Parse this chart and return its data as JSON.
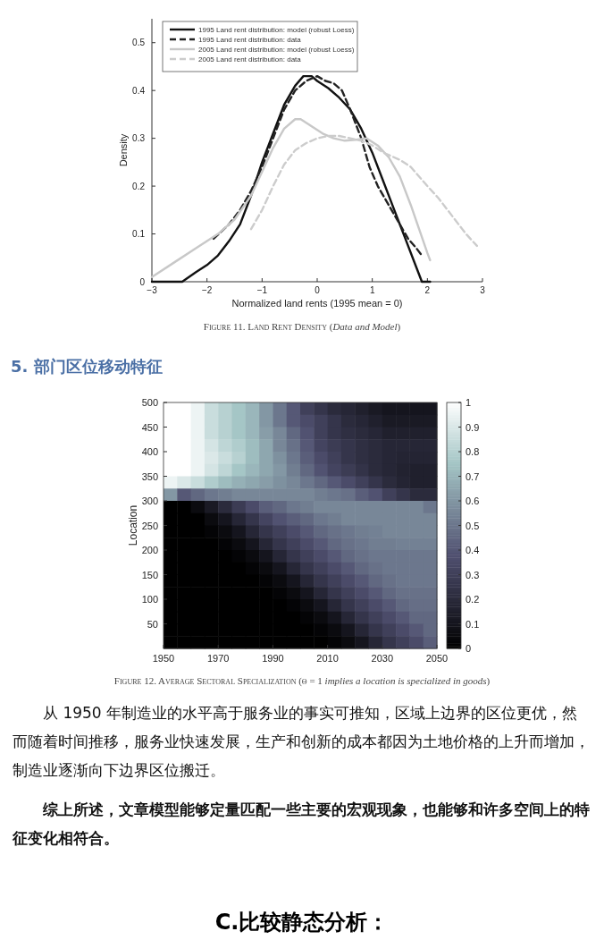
{
  "chart_data": [
    {
      "type": "line",
      "xlabel": "Normalized land rents (1995 mean = 0)",
      "ylabel": "Density",
      "xlim": [
        -3,
        3
      ],
      "xticks": [
        {
          "value": -3,
          "label": "−3"
        },
        {
          "value": -2,
          "label": "−2"
        },
        {
          "value": -1,
          "label": "−1"
        },
        0,
        1,
        2,
        3
      ],
      "ylim": [
        0,
        0.55
      ],
      "yticks": [
        0,
        0.1,
        0.2,
        0.3,
        0.4,
        0.5
      ],
      "grid": false,
      "legend": "top left",
      "annotations": [
        "Figure 11. Land Rent Density (*Data and Model*)"
      ],
      "series": [
        {
          "name": "1995 Land rent distribution: model (robust Loess)",
          "color": "#111111",
          "line_style": "solid",
          "x": [
            -3,
            -2.45,
            -2.2,
            -2,
            -1.8,
            -1.6,
            -1.4,
            -1.2,
            -1,
            -0.8,
            -0.6,
            -0.4,
            -0.25,
            -0.1,
            0,
            0.2,
            0.4,
            0.6,
            0.8,
            1.0,
            1.2,
            1.4,
            1.6,
            1.75,
            1.9,
            2.05
          ],
          "values": [
            0,
            0,
            0.02,
            0.035,
            0.055,
            0.085,
            0.12,
            0.18,
            0.25,
            0.31,
            0.37,
            0.41,
            0.43,
            0.43,
            0.42,
            0.405,
            0.385,
            0.36,
            0.32,
            0.27,
            0.21,
            0.15,
            0.09,
            0.045,
            0,
            0
          ]
        },
        {
          "name": "1995 Land rent distribution: data",
          "color": "#222222",
          "line_style": "dashed",
          "x": [
            -1.88,
            -1.6,
            -1.4,
            -1.2,
            -1,
            -0.8,
            -0.6,
            -0.4,
            -0.2,
            0,
            0.15,
            0.3,
            0.45,
            0.6,
            0.8,
            0.95,
            1.1,
            1.3,
            1.5,
            1.65,
            1.8,
            1.9
          ],
          "values": [
            0.09,
            0.12,
            0.15,
            0.19,
            0.24,
            0.3,
            0.36,
            0.4,
            0.42,
            0.43,
            0.42,
            0.415,
            0.4,
            0.36,
            0.3,
            0.24,
            0.2,
            0.16,
            0.12,
            0.09,
            0.07,
            0.055
          ]
        },
        {
          "name": "2005 Land rent distribution: model (robust Loess)",
          "color": "#c8c8c8",
          "line_style": "solid",
          "x": [
            -3,
            -2.6,
            -2.2,
            -1.8,
            -1.5,
            -1.2,
            -1,
            -0.8,
            -0.6,
            -0.4,
            -0.3,
            -0.1,
            0.1,
            0.3,
            0.5,
            0.7,
            0.9,
            1.1,
            1.3,
            1.5,
            1.7,
            1.85,
            2.0,
            2.05
          ],
          "values": [
            0.01,
            0.04,
            0.07,
            0.1,
            0.13,
            0.18,
            0.23,
            0.28,
            0.32,
            0.34,
            0.34,
            0.325,
            0.31,
            0.3,
            0.295,
            0.297,
            0.3,
            0.285,
            0.26,
            0.22,
            0.16,
            0.11,
            0.06,
            0.045
          ]
        },
        {
          "name": "2005 Land rent distribution: data",
          "color": "#cccccc",
          "line_style": "dashed",
          "x": [
            -1.2,
            -1,
            -0.8,
            -0.6,
            -0.4,
            -0.2,
            0,
            0.2,
            0.4,
            0.6,
            0.8,
            1.0,
            1.2,
            1.5,
            1.7,
            2.0,
            2.2,
            2.5,
            2.7,
            2.9
          ],
          "values": [
            0.11,
            0.15,
            0.2,
            0.245,
            0.275,
            0.29,
            0.3,
            0.305,
            0.305,
            0.3,
            0.295,
            0.285,
            0.27,
            0.255,
            0.24,
            0.2,
            0.175,
            0.13,
            0.1,
            0.075
          ]
        }
      ]
    },
    {
      "type": "heatmap",
      "title": "5.  部门区位移动特征",
      "ylabel": "Location",
      "xlim": [
        1950,
        2050
      ],
      "xticks": [
        1950,
        1970,
        1990,
        2010,
        2030,
        2050
      ],
      "ylim": [
        0,
        500
      ],
      "yticks": [
        50,
        100,
        150,
        200,
        250,
        300,
        350,
        400,
        450,
        500
      ],
      "clim": [
        0,
        1
      ],
      "cticks": [
        0,
        0.1,
        0.2,
        0.3,
        0.4,
        0.5,
        0.6,
        0.7,
        0.8,
        0.9,
        1
      ],
      "annotations": [
        "Figure 12. Average Sectoral Specialization (θ = 1 *implies a location is specialized in goods*)",
        "从 1950 年制造业的水平高于服务业的事实可推知，区域上边界的区位更优，然而随着时间推移，服务业快速发展，生产和创新的成本都因为土地价格的上升而增加，制造业逐渐向下边界区位搬迁。",
        "**综上所述，文章模型能够定量匹配一些主要的宏观现象，也能够和许多空间上的特征变化相符合。**",
        "**C.比较静态分析：**"
      ],
      "x": [
        1952.5,
        1957.5,
        1962.5,
        1967.5,
        1972.5,
        1977.5,
        1982.5,
        1987.5,
        1992.5,
        1997.5,
        2002.5,
        2007.5,
        2012.5,
        2017.5,
        2022.5,
        2027.5,
        2032.5,
        2037.5,
        2042.5,
        2047.5
      ],
      "y": [
        487.5,
        462.5,
        437.5,
        412.5,
        387.5,
        362.5,
        337.5,
        312.5,
        287.5,
        262.5,
        237.5,
        212.5,
        187.5,
        162.5,
        137.5,
        112.5,
        87.5,
        62.5,
        37.5,
        12.5
      ],
      "cells": [
        [
          1.0,
          1.0,
          0.95,
          0.85,
          0.8,
          0.75,
          0.7,
          0.6,
          0.5,
          0.4,
          0.3,
          0.25,
          0.2,
          0.18,
          0.15,
          0.12,
          0.1,
          0.1,
          0.1,
          0.1
        ],
        [
          1.0,
          1.0,
          0.95,
          0.85,
          0.8,
          0.75,
          0.7,
          0.6,
          0.5,
          0.4,
          0.35,
          0.3,
          0.25,
          0.2,
          0.18,
          0.15,
          0.12,
          0.12,
          0.12,
          0.12
        ],
        [
          1.0,
          1.0,
          0.95,
          0.85,
          0.8,
          0.75,
          0.7,
          0.62,
          0.55,
          0.45,
          0.38,
          0.3,
          0.25,
          0.22,
          0.2,
          0.18,
          0.15,
          0.15,
          0.15,
          0.15
        ],
        [
          1.0,
          1.0,
          0.95,
          0.88,
          0.82,
          0.78,
          0.72,
          0.65,
          0.55,
          0.48,
          0.4,
          0.32,
          0.28,
          0.25,
          0.22,
          0.2,
          0.18,
          0.18,
          0.18,
          0.18
        ],
        [
          1.0,
          1.0,
          0.95,
          0.9,
          0.85,
          0.8,
          0.72,
          0.65,
          0.58,
          0.5,
          0.42,
          0.35,
          0.3,
          0.25,
          0.22,
          0.2,
          0.18,
          0.17,
          0.17,
          0.17
        ],
        [
          1.0,
          1.0,
          0.95,
          0.88,
          0.82,
          0.75,
          0.7,
          0.65,
          0.6,
          0.52,
          0.45,
          0.38,
          0.32,
          0.28,
          0.24,
          0.2,
          0.18,
          0.16,
          0.15,
          0.15
        ],
        [
          0.95,
          0.9,
          0.85,
          0.78,
          0.72,
          0.68,
          0.65,
          0.62,
          0.58,
          0.55,
          0.5,
          0.45,
          0.4,
          0.35,
          0.3,
          0.25,
          0.2,
          0.17,
          0.15,
          0.15
        ],
        [
          0.6,
          0.4,
          0.45,
          0.5,
          0.52,
          0.55,
          0.55,
          0.55,
          0.55,
          0.55,
          0.55,
          0.52,
          0.5,
          0.48,
          0.42,
          0.38,
          0.3,
          0.25,
          0.2,
          0.2
        ],
        [
          0,
          0,
          0.05,
          0.12,
          0.2,
          0.28,
          0.35,
          0.42,
          0.45,
          0.5,
          0.52,
          0.55,
          0.55,
          0.55,
          0.55,
          0.55,
          0.55,
          0.55,
          0.55,
          0.5
        ],
        [
          0,
          0,
          0,
          0.05,
          0.1,
          0.18,
          0.25,
          0.32,
          0.38,
          0.42,
          0.45,
          0.5,
          0.52,
          0.55,
          0.55,
          0.55,
          0.55,
          0.55,
          0.55,
          0.55
        ],
        [
          0,
          0,
          0,
          0.02,
          0.05,
          0.1,
          0.18,
          0.25,
          0.3,
          0.35,
          0.4,
          0.45,
          0.48,
          0.5,
          0.52,
          0.53,
          0.55,
          0.55,
          0.55,
          0.55
        ],
        [
          0,
          0,
          0,
          0,
          0.02,
          0.05,
          0.1,
          0.18,
          0.25,
          0.3,
          0.35,
          0.4,
          0.45,
          0.48,
          0.5,
          0.52,
          0.52,
          0.53,
          0.53,
          0.53
        ],
        [
          0,
          0,
          0,
          0,
          0,
          0.02,
          0.05,
          0.1,
          0.18,
          0.25,
          0.3,
          0.35,
          0.4,
          0.45,
          0.48,
          0.5,
          0.5,
          0.5,
          0.5,
          0.5
        ],
        [
          0,
          0,
          0,
          0,
          0,
          0,
          0.02,
          0.05,
          0.1,
          0.18,
          0.25,
          0.3,
          0.35,
          0.4,
          0.45,
          0.48,
          0.5,
          0.5,
          0.5,
          0.5
        ],
        [
          0,
          0,
          0,
          0,
          0,
          0,
          0,
          0.02,
          0.05,
          0.1,
          0.18,
          0.25,
          0.3,
          0.35,
          0.4,
          0.45,
          0.48,
          0.5,
          0.5,
          0.5
        ],
        [
          0,
          0,
          0,
          0,
          0,
          0,
          0,
          0,
          0.02,
          0.05,
          0.1,
          0.18,
          0.25,
          0.3,
          0.35,
          0.4,
          0.45,
          0.48,
          0.48,
          0.48
        ],
        [
          0,
          0,
          0,
          0,
          0,
          0,
          0,
          0,
          0,
          0.02,
          0.05,
          0.1,
          0.18,
          0.25,
          0.3,
          0.35,
          0.4,
          0.45,
          0.47,
          0.47
        ],
        [
          0,
          0,
          0,
          0,
          0,
          0,
          0,
          0,
          0,
          0,
          0.02,
          0.05,
          0.1,
          0.18,
          0.25,
          0.3,
          0.35,
          0.4,
          0.45,
          0.45
        ],
        [
          0,
          0,
          0,
          0,
          0,
          0,
          0,
          0,
          0,
          0,
          0,
          0.02,
          0.05,
          0.1,
          0.18,
          0.25,
          0.3,
          0.35,
          0.4,
          0.45
        ],
        [
          0,
          0,
          0,
          0,
          0,
          0,
          0,
          0,
          0,
          0,
          0,
          0,
          0.02,
          0.05,
          0.1,
          0.18,
          0.25,
          0.3,
          0.35,
          0.42
        ]
      ]
    }
  ]
}
